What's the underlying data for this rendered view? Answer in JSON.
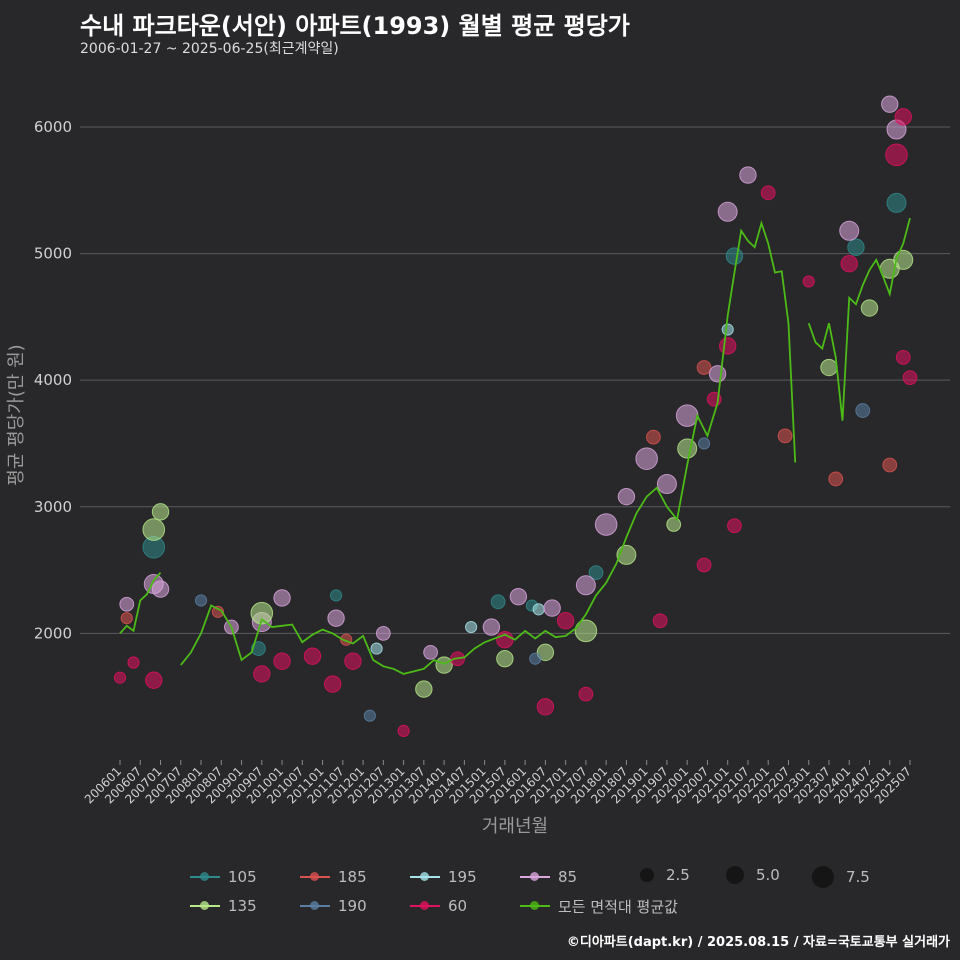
{
  "title": "수내 파크타운(서안) 아파트(1993) 월별 평균 평당가",
  "subtitle": "2006-01-27 ~ 2025-06-25(최근계약일)",
  "footer": "©디아파트(dapt.kr) / 2025.08.15 / 자료=국토교통부 실거래가",
  "legend": [
    {
      "label": "105",
      "color": "#2e8b8b"
    },
    {
      "label": "185",
      "color": "#d9534f"
    },
    {
      "label": "195",
      "color": "#a6e3e9"
    },
    {
      "label": "85",
      "color": "#d9a6dd"
    },
    {
      "label": "135",
      "color": "#b7e98a"
    },
    {
      "label": "190",
      "color": "#5a7fa3"
    },
    {
      "label": "60",
      "color": "#e0115f"
    },
    {
      "label": "모든 면적대 평균값",
      "color": "#4cbb17"
    }
  ],
  "size_legend": [
    {
      "label": "2.5",
      "value": 2.5
    },
    {
      "label": "5.0",
      "value": 5.0
    },
    {
      "label": "7.5",
      "value": 7.5
    }
  ],
  "chart_data": {
    "type": "scatter",
    "xlabel": "거래년월",
    "ylabel": "평균 평당가(만 원)",
    "ylim": [
      1000,
      6450
    ],
    "yticks": [
      2000,
      3000,
      4000,
      5000,
      6000
    ],
    "xticks": [
      "200601",
      "200607",
      "200701",
      "200707",
      "200801",
      "200807",
      "200901",
      "200907",
      "201001",
      "201007",
      "201101",
      "201107",
      "201201",
      "201207",
      "201301",
      "201307",
      "201401",
      "201407",
      "201501",
      "201507",
      "201601",
      "201607",
      "201701",
      "201707",
      "201801",
      "201807",
      "201901",
      "201907",
      "202001",
      "202007",
      "202101",
      "202107",
      "202201",
      "202207",
      "202301",
      "202307",
      "202401",
      "202407",
      "202501",
      "202507"
    ],
    "grid": true,
    "average_line": {
      "name": "모든 면적대 평균값",
      "segments": [
        {
          "x": [
            "2006-01",
            "2006-03",
            "2006-05",
            "2006-07",
            "2006-09",
            "2006-11",
            "2007-01"
          ],
          "y": [
            2000,
            2060,
            2020,
            2260,
            2310,
            2420,
            2480
          ]
        },
        {
          "x": [
            "2007-07",
            "2007-10",
            "2008-01",
            "2008-04",
            "2008-07",
            "2008-10",
            "2009-01",
            "2009-04",
            "2009-07",
            "2009-10",
            "2010-01",
            "2010-04",
            "2010-07",
            "2010-10",
            "2011-01",
            "2011-04",
            "2011-07",
            "2011-10",
            "2012-01",
            "2012-04",
            "2012-07",
            "2012-10",
            "2013-01",
            "2013-04",
            "2013-07",
            "2013-10",
            "2014-01",
            "2014-04",
            "2014-07",
            "2014-10",
            "2015-01",
            "2015-04",
            "2015-07",
            "2015-10",
            "2016-01",
            "2016-04",
            "2016-07",
            "2016-10",
            "2017-01",
            "2017-04",
            "2017-07",
            "2017-10",
            "2018-01",
            "2018-04",
            "2018-07",
            "2018-10",
            "2019-01",
            "2019-04",
            "2019-07",
            "2019-10",
            "2020-01",
            "2020-04",
            "2020-07",
            "2020-10",
            "2021-01",
            "2021-03",
            "2021-05",
            "2021-07",
            "2021-09",
            "2021-11",
            "2022-01",
            "2022-03",
            "2022-05",
            "2022-07",
            "2022-09"
          ],
          "y": [
            1750,
            1850,
            2000,
            2220,
            2180,
            2050,
            1790,
            1850,
            2110,
            2050,
            2060,
            2070,
            1930,
            1990,
            2030,
            2000,
            1950,
            1920,
            1980,
            1790,
            1740,
            1720,
            1680,
            1700,
            1720,
            1790,
            1760,
            1800,
            1810,
            1880,
            1930,
            1960,
            1990,
            1950,
            2020,
            1960,
            2020,
            1970,
            1980,
            2040,
            2150,
            2300,
            2400,
            2550,
            2760,
            2950,
            3080,
            3150,
            3000,
            2900,
            3330,
            3720,
            3560,
            3820,
            4510,
            4850,
            5180,
            5100,
            5050,
            5240,
            5080,
            4850,
            4860,
            4450,
            3350
          ]
        },
        {
          "x": [
            "2023-01",
            "2023-03",
            "2023-05",
            "2023-07",
            "2023-09",
            "2023-11",
            "2024-01",
            "2024-03",
            "2024-05",
            "2024-07",
            "2024-09",
            "2024-11",
            "2025-01",
            "2025-03",
            "2025-05",
            "2025-07"
          ],
          "y": [
            4450,
            4300,
            4250,
            4450,
            4180,
            3680,
            4650,
            4600,
            4750,
            4870,
            4950,
            4820,
            4680,
            4960,
            5080,
            5280
          ]
        }
      ]
    },
    "series": [
      {
        "name": "105",
        "points": [
          {
            "x": "2006-11",
            "y": 2680,
            "size": 3
          },
          {
            "x": "2009-06",
            "y": 1880,
            "size": 1.5
          },
          {
            "x": "2011-05",
            "y": 2300,
            "size": 1
          },
          {
            "x": "2015-05",
            "y": 2250,
            "size": 1.5
          },
          {
            "x": "2016-03",
            "y": 2220,
            "size": 1
          },
          {
            "x": "2017-10",
            "y": 2480,
            "size": 1.5
          },
          {
            "x": "2021-03",
            "y": 4980,
            "size": 2
          },
          {
            "x": "2024-03",
            "y": 5050,
            "size": 2
          },
          {
            "x": "2025-03",
            "y": 5400,
            "size": 2.5
          }
        ]
      },
      {
        "name": "185",
        "points": [
          {
            "x": "2006-03",
            "y": 2120,
            "size": 1
          },
          {
            "x": "2008-06",
            "y": 2170,
            "size": 1
          },
          {
            "x": "2011-08",
            "y": 1950,
            "size": 1
          },
          {
            "x": "2019-03",
            "y": 3550,
            "size": 1.5
          },
          {
            "x": "2020-06",
            "y": 4100,
            "size": 1.5
          },
          {
            "x": "2022-06",
            "y": 3560,
            "size": 1.5
          },
          {
            "x": "2023-09",
            "y": 3220,
            "size": 1.5
          },
          {
            "x": "2025-01",
            "y": 3330,
            "size": 1.5
          }
        ]
      },
      {
        "name": "195",
        "points": [
          {
            "x": "2012-05",
            "y": 1880,
            "size": 1
          },
          {
            "x": "2014-09",
            "y": 2050,
            "size": 1
          },
          {
            "x": "2016-05",
            "y": 2190,
            "size": 1
          },
          {
            "x": "2021-01",
            "y": 4400,
            "size": 1
          }
        ]
      },
      {
        "name": "85",
        "points": [
          {
            "x": "2006-03",
            "y": 2230,
            "size": 1.5
          },
          {
            "x": "2006-11",
            "y": 2390,
            "size": 2.5
          },
          {
            "x": "2007-01",
            "y": 2350,
            "size": 2
          },
          {
            "x": "2008-10",
            "y": 2050,
            "size": 1.5
          },
          {
            "x": "2009-07",
            "y": 2090,
            "size": 2.5
          },
          {
            "x": "2010-01",
            "y": 2280,
            "size": 2
          },
          {
            "x": "2011-05",
            "y": 2120,
            "size": 2
          },
          {
            "x": "2012-07",
            "y": 2000,
            "size": 1.5
          },
          {
            "x": "2013-09",
            "y": 1850,
            "size": 1.5
          },
          {
            "x": "2015-03",
            "y": 2050,
            "size": 2
          },
          {
            "x": "2015-11",
            "y": 2290,
            "size": 2
          },
          {
            "x": "2016-09",
            "y": 2200,
            "size": 2
          },
          {
            "x": "2017-07",
            "y": 2380,
            "size": 2.5
          },
          {
            "x": "2018-01",
            "y": 2860,
            "size": 3
          },
          {
            "x": "2018-07",
            "y": 3080,
            "size": 2
          },
          {
            "x": "2019-01",
            "y": 3380,
            "size": 3
          },
          {
            "x": "2019-07",
            "y": 3180,
            "size": 2.5
          },
          {
            "x": "2020-01",
            "y": 3720,
            "size": 3
          },
          {
            "x": "2020-10",
            "y": 4050,
            "size": 2
          },
          {
            "x": "2021-01",
            "y": 5330,
            "size": 2.5
          },
          {
            "x": "2021-07",
            "y": 5620,
            "size": 2
          },
          {
            "x": "2024-01",
            "y": 5180,
            "size": 2.5
          },
          {
            "x": "2025-01",
            "y": 6180,
            "size": 2
          },
          {
            "x": "2025-03",
            "y": 5980,
            "size": 2.5
          }
        ]
      },
      {
        "name": "135",
        "points": [
          {
            "x": "2006-11",
            "y": 2820,
            "size": 3
          },
          {
            "x": "2007-01",
            "y": 2960,
            "size": 2
          },
          {
            "x": "2009-07",
            "y": 2160,
            "size": 3
          },
          {
            "x": "2013-07",
            "y": 1560,
            "size": 2
          },
          {
            "x": "2014-01",
            "y": 1750,
            "size": 2
          },
          {
            "x": "2015-07",
            "y": 1800,
            "size": 2
          },
          {
            "x": "2016-07",
            "y": 1850,
            "size": 2
          },
          {
            "x": "2017-07",
            "y": 2020,
            "size": 3
          },
          {
            "x": "2018-07",
            "y": 2620,
            "size": 2.5
          },
          {
            "x": "2019-09",
            "y": 2860,
            "size": 1.5
          },
          {
            "x": "2020-01",
            "y": 3460,
            "size": 2.5
          },
          {
            "x": "2023-07",
            "y": 4100,
            "size": 2
          },
          {
            "x": "2024-07",
            "y": 4570,
            "size": 2
          },
          {
            "x": "2025-01",
            "y": 4880,
            "size": 2.5
          },
          {
            "x": "2025-05",
            "y": 4950,
            "size": 2.5
          }
        ]
      },
      {
        "name": "190",
        "points": [
          {
            "x": "2008-01",
            "y": 2260,
            "size": 1
          },
          {
            "x": "2012-03",
            "y": 1350,
            "size": 1
          },
          {
            "x": "2016-04",
            "y": 1800,
            "size": 1
          },
          {
            "x": "2020-06",
            "y": 3500,
            "size": 1
          },
          {
            "x": "2024-05",
            "y": 3760,
            "size": 1.5
          }
        ]
      },
      {
        "name": "60",
        "points": [
          {
            "x": "2006-01",
            "y": 1650,
            "size": 1
          },
          {
            "x": "2006-05",
            "y": 1770,
            "size": 1
          },
          {
            "x": "2006-11",
            "y": 1630,
            "size": 2
          },
          {
            "x": "2009-07",
            "y": 1680,
            "size": 2
          },
          {
            "x": "2010-01",
            "y": 1780,
            "size": 2
          },
          {
            "x": "2010-10",
            "y": 1820,
            "size": 2
          },
          {
            "x": "2011-04",
            "y": 1600,
            "size": 2
          },
          {
            "x": "2011-10",
            "y": 1780,
            "size": 2
          },
          {
            "x": "2013-01",
            "y": 1230,
            "size": 1
          },
          {
            "x": "2014-05",
            "y": 1800,
            "size": 1.5
          },
          {
            "x": "2015-07",
            "y": 1950,
            "size": 2
          },
          {
            "x": "2016-07",
            "y": 1420,
            "size": 2
          },
          {
            "x": "2017-01",
            "y": 2100,
            "size": 2
          },
          {
            "x": "2017-07",
            "y": 1520,
            "size": 1.5
          },
          {
            "x": "2019-05",
            "y": 2100,
            "size": 1.5
          },
          {
            "x": "2020-06",
            "y": 2540,
            "size": 1.5
          },
          {
            "x": "2020-09",
            "y": 3850,
            "size": 1.5
          },
          {
            "x": "2021-01",
            "y": 4270,
            "size": 2
          },
          {
            "x": "2021-03",
            "y": 2850,
            "size": 1.5
          },
          {
            "x": "2022-01",
            "y": 5480,
            "size": 1.5
          },
          {
            "x": "2023-01",
            "y": 4780,
            "size": 1
          },
          {
            "x": "2024-01",
            "y": 4920,
            "size": 2
          },
          {
            "x": "2025-03",
            "y": 5780,
            "size": 3
          },
          {
            "x": "2025-05",
            "y": 6080,
            "size": 2
          },
          {
            "x": "2025-05",
            "y": 4180,
            "size": 1.5
          },
          {
            "x": "2025-07",
            "y": 4020,
            "size": 1.5
          }
        ]
      }
    ]
  }
}
